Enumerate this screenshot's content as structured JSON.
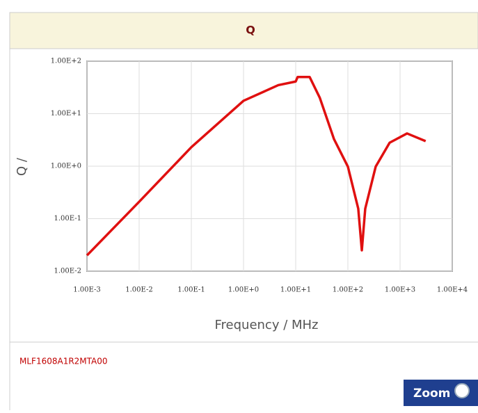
{
  "chart_data": {
    "type": "line",
    "title": "Q",
    "xlabel": "Frequency / MHz",
    "ylabel": "Q /",
    "xscale": "log",
    "yscale": "log",
    "grid": true,
    "xlim": [
      0.001,
      10000
    ],
    "ylim": [
      0.01,
      100
    ],
    "xticks": [
      {
        "value": 0.001,
        "label": "1.00E-3"
      },
      {
        "value": 0.01,
        "label": "1.00E-2"
      },
      {
        "value": 0.1,
        "label": "1.00E-1"
      },
      {
        "value": 1,
        "label": "1.00E+0"
      },
      {
        "value": 10,
        "label": "1.00E+1"
      },
      {
        "value": 100,
        "label": "1.00E+2"
      },
      {
        "value": 1000,
        "label": "1.00E+3"
      },
      {
        "value": 10000,
        "label": "1.00E+4"
      }
    ],
    "yticks": [
      {
        "value": 100,
        "label": "1.00E+2"
      },
      {
        "value": 10,
        "label": "1.00E+1"
      },
      {
        "value": 1,
        "label": "1.00E+0"
      },
      {
        "value": 0.1,
        "label": "1.00E-1"
      },
      {
        "value": 0.01,
        "label": "1.00E-2"
      }
    ],
    "series": [
      {
        "name": "MLF1608A1R2MTA00",
        "color": "#e01010",
        "x": [
          0.001,
          0.01,
          0.1,
          1,
          4.64,
          10,
          10.9,
          18.5,
          29,
          54,
          100,
          158,
          185,
          215,
          341,
          631,
          1360,
          3090
        ],
        "values": [
          0.02,
          0.21,
          2.3,
          17.6,
          35,
          41,
          50,
          50,
          20,
          3.3,
          0.98,
          0.155,
          0.025,
          0.155,
          0.98,
          2.8,
          4.2,
          3.0
        ]
      }
    ]
  },
  "zoom_button": "Zoom"
}
